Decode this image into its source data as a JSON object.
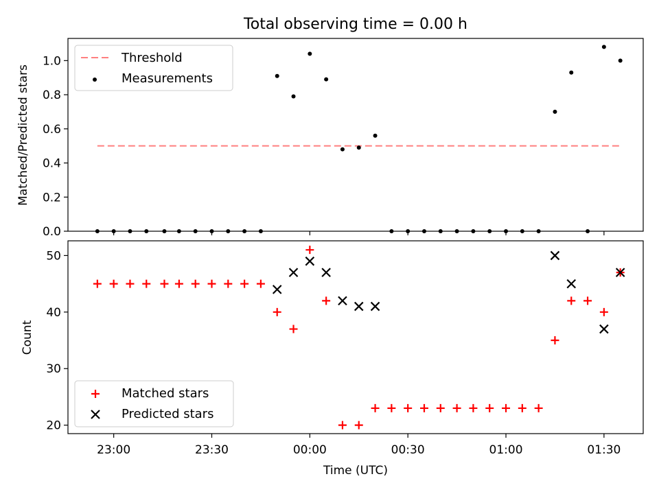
{
  "chart_data": [
    {
      "type": "scatter",
      "title": "Total observing time = 0.00 h",
      "xlabel": "",
      "ylabel": "Matched/Predicted stars",
      "ylim": [
        0,
        1.13
      ],
      "xlim": [
        -14,
        162
      ],
      "y_ticks": [
        0.0,
        0.2,
        0.4,
        0.6,
        0.8,
        1.0
      ],
      "y_tick_labels": [
        "0.0",
        "0.2",
        "0.4",
        "0.6",
        "0.8",
        "1.0"
      ],
      "legend": {
        "position": "top-left",
        "entries": [
          "Threshold",
          "Measurements"
        ]
      },
      "colors": {
        "threshold": "#ff7f7f",
        "measurements": "#000000"
      },
      "threshold": {
        "name": "Threshold",
        "x": [
          -5,
          155
        ],
        "y": [
          0.5,
          0.5
        ]
      },
      "series": [
        {
          "name": "Measurements",
          "x": [
            -5,
            0,
            5,
            10,
            15.5,
            20,
            25,
            30,
            35,
            40,
            45,
            50,
            55,
            60,
            65,
            70,
            75,
            80,
            85,
            90,
            95,
            100,
            105,
            110,
            115,
            120,
            125,
            130,
            135,
            140,
            145,
            150,
            155
          ],
          "y": [
            0,
            0,
            0,
            0,
            0,
            0,
            0,
            0,
            0,
            0,
            0,
            0.91,
            0.79,
            1.04,
            0.89,
            0.48,
            0.49,
            0.56,
            0,
            0,
            0,
            0,
            0,
            0,
            0,
            0,
            0,
            0,
            0.7,
            0.93,
            0,
            1.08,
            1.0
          ]
        }
      ]
    },
    {
      "type": "scatter",
      "title": "",
      "xlabel": "Time (UTC)",
      "ylabel": "Count",
      "ylim": [
        18.5,
        52.6
      ],
      "xlim": [
        -14,
        162
      ],
      "y_ticks": [
        20,
        30,
        40,
        50
      ],
      "y_tick_labels": [
        "20",
        "30",
        "40",
        "50"
      ],
      "x_ticks": [
        0,
        30,
        60,
        90,
        120,
        150
      ],
      "x_tick_labels": [
        "23:00",
        "23:30",
        "00:00",
        "00:30",
        "01:00",
        "01:30"
      ],
      "legend": {
        "position": "bottom-left",
        "entries": [
          "Matched stars",
          "Predicted stars"
        ]
      },
      "colors": {
        "matched": "#ff0000",
        "predicted": "#000000"
      },
      "series": [
        {
          "name": "Matched stars",
          "x": [
            -5,
            0,
            5,
            10,
            15.5,
            20,
            25,
            30,
            35,
            40,
            45,
            50,
            55,
            60,
            65,
            70,
            75,
            80,
            85,
            90,
            95,
            100,
            105,
            110,
            115,
            120,
            125,
            130,
            135,
            140,
            145,
            150,
            155
          ],
          "y": [
            45,
            45,
            45,
            45,
            45,
            45,
            45,
            45,
            45,
            45,
            45,
            40,
            37,
            51,
            42,
            20,
            20,
            23,
            23,
            23,
            23,
            23,
            23,
            23,
            23,
            23,
            23,
            23,
            35,
            42,
            42,
            40,
            47
          ]
        },
        {
          "name": "Predicted stars",
          "x": [
            50,
            55,
            60,
            65,
            70,
            75,
            80,
            135,
            140,
            150,
            155
          ],
          "y": [
            44,
            47,
            49,
            47,
            42,
            41,
            41,
            50,
            45,
            37,
            47
          ]
        }
      ]
    }
  ]
}
